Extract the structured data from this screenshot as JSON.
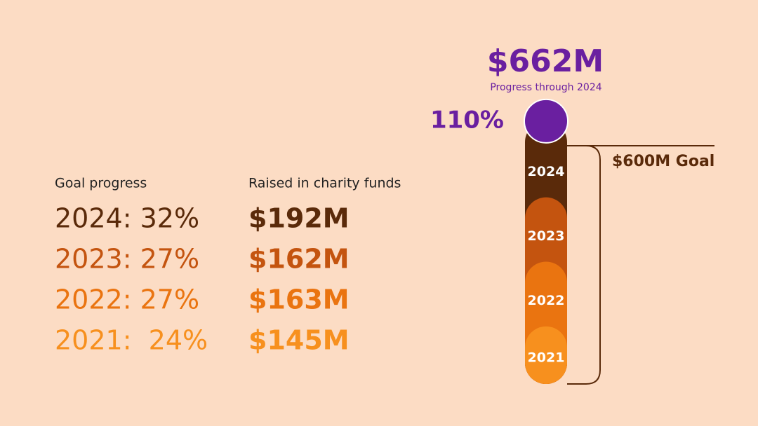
{
  "chart_data": {
    "type": "thermometer",
    "total": 662,
    "total_label": "$662M",
    "total_caption": "Progress through 2024",
    "goal_percent": 110,
    "goal_percent_label": "110%",
    "goal": 600,
    "goal_label": "$600M Goal",
    "ylim": [
      0,
      662
    ],
    "left_header": "Goal progress",
    "right_header": "Raised in charity funds",
    "categories": [
      "2021",
      "2022",
      "2023",
      "2024"
    ],
    "progress_labels": [
      "2021:  24%",
      "2022: 27%",
      "2023: 27%",
      "2024: 32%"
    ],
    "values": [
      145,
      163,
      162,
      192
    ],
    "value_labels": [
      "$145M",
      "$163M",
      "$162M",
      "$192M"
    ],
    "colors": [
      "#f7901e",
      "#ea7410",
      "#c4540f",
      "#5a2a0a"
    ],
    "total_color": "#6a1fa0"
  }
}
